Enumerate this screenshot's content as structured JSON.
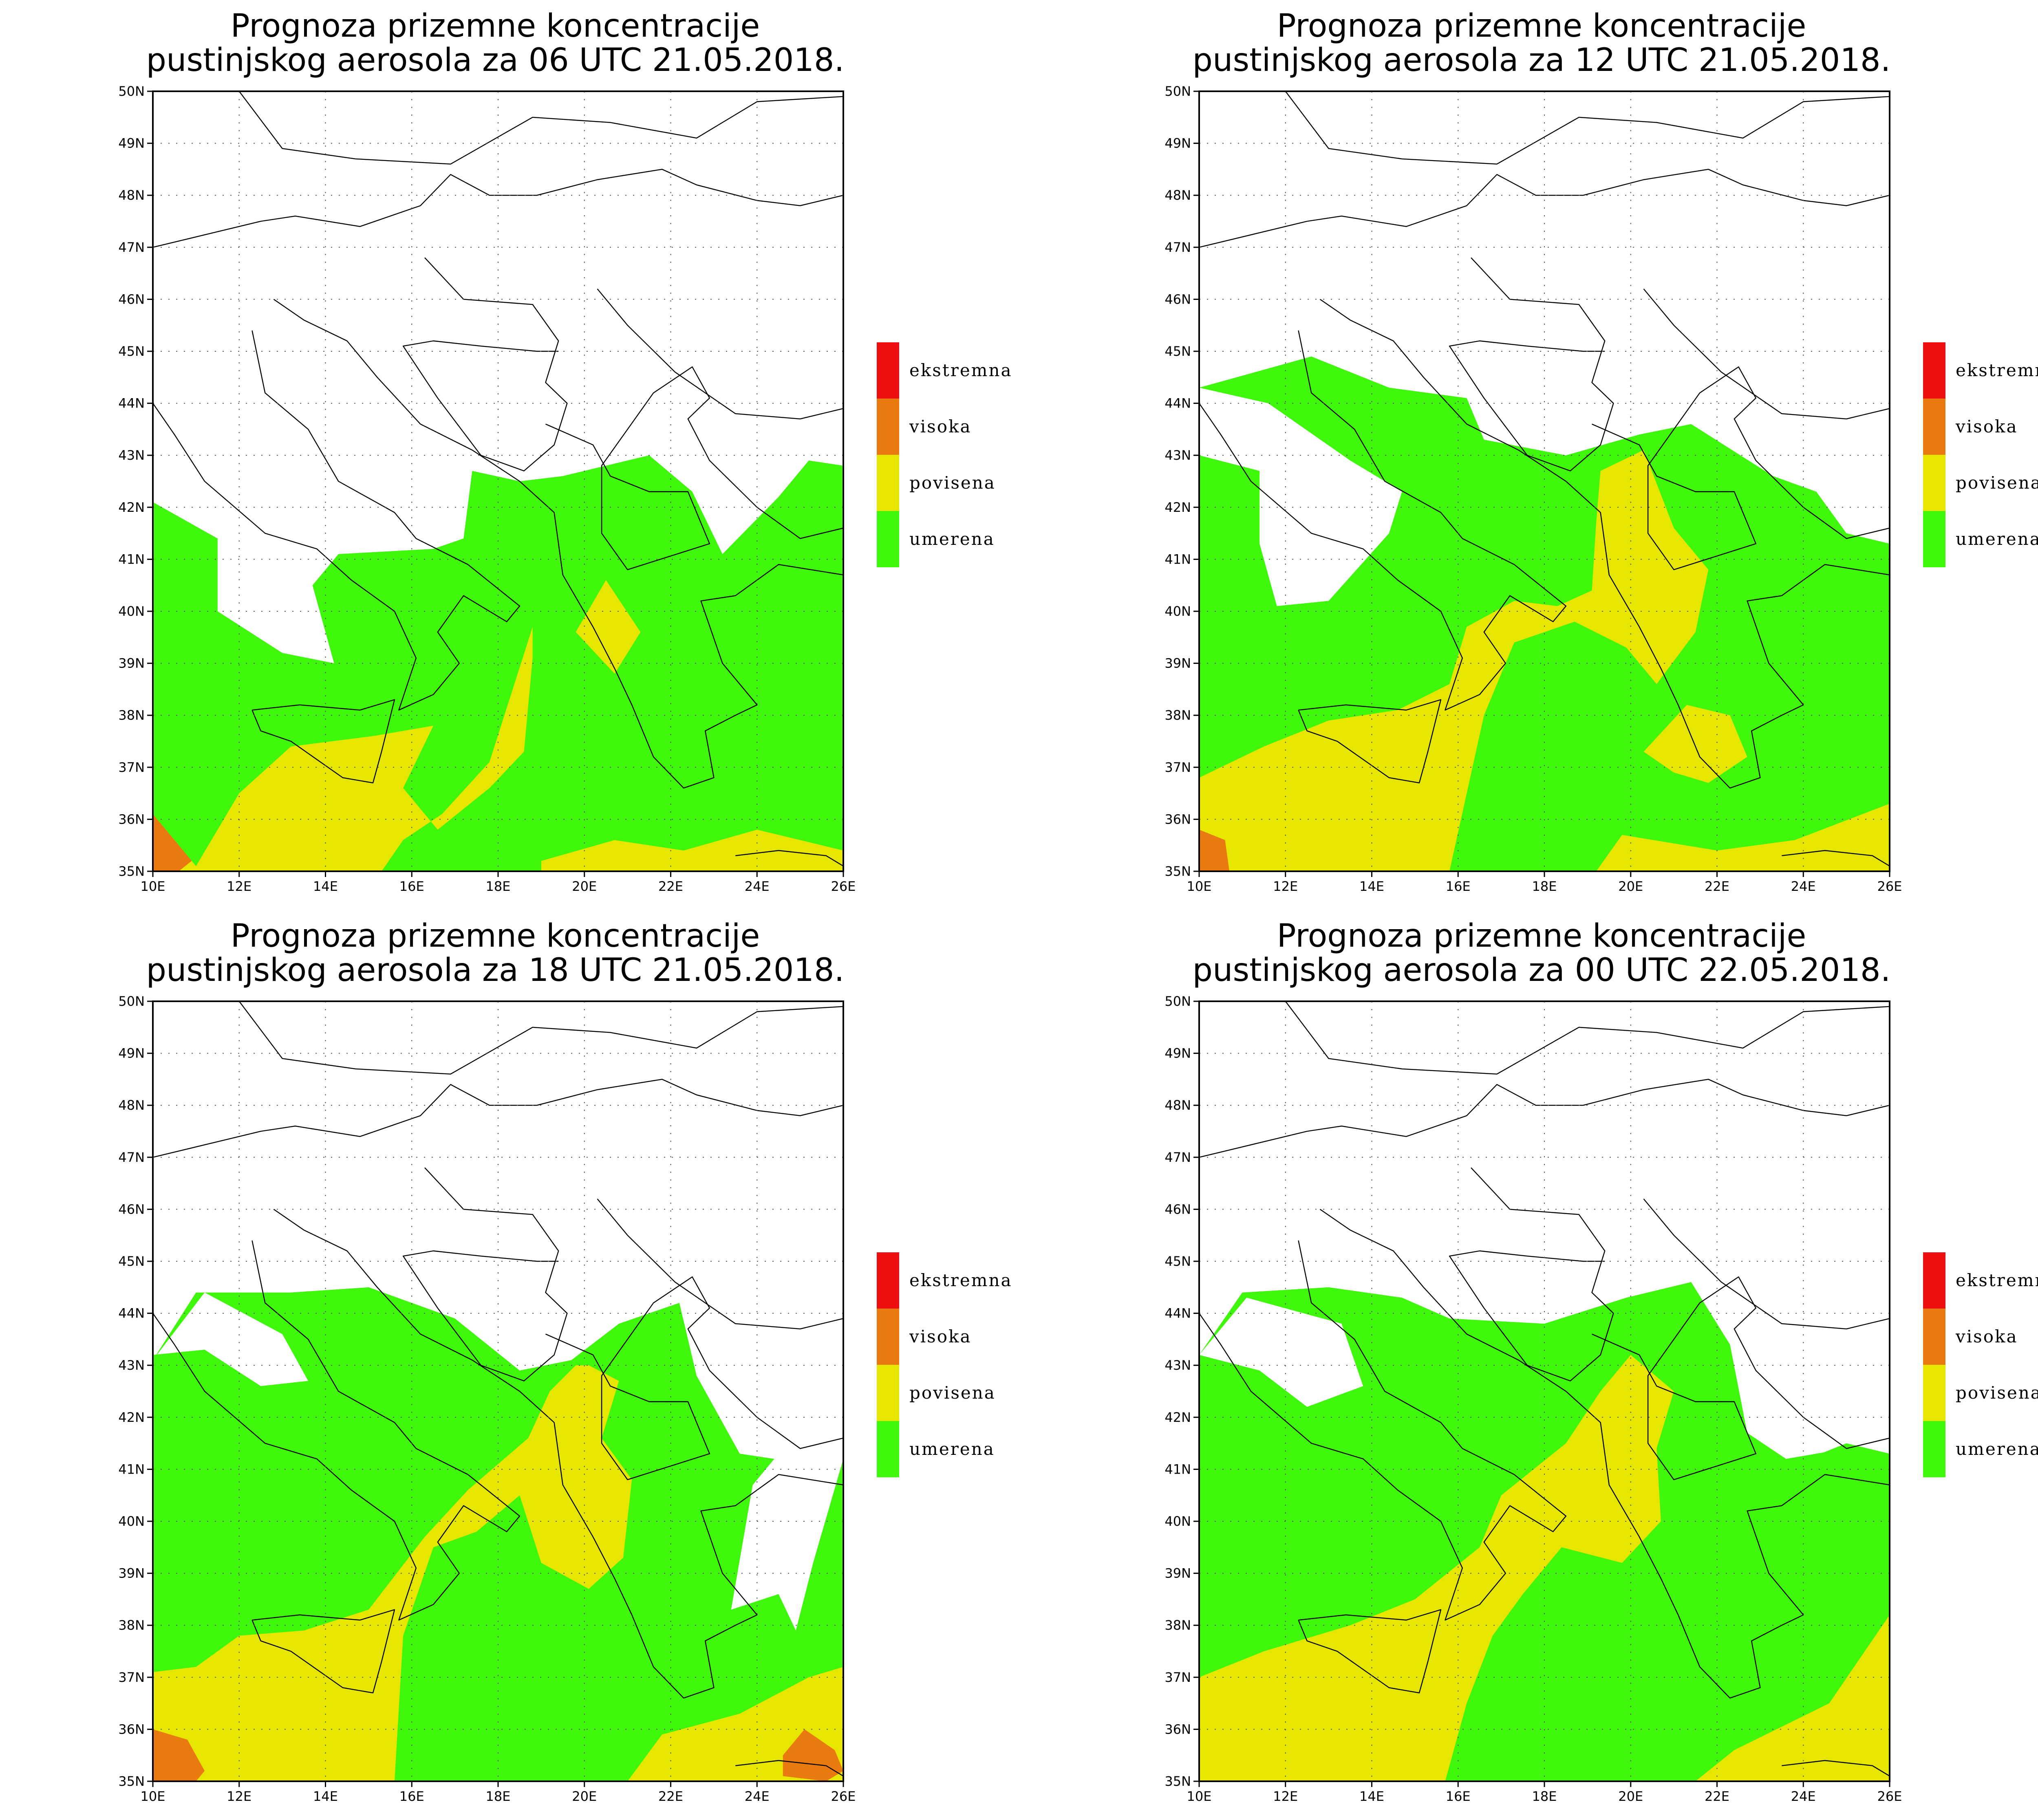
{
  "panels": [
    {
      "title_line1": "Prognoza prizemne koncentracije",
      "title_line2": "pustinjskog aerosola za 06 UTC 21.05.2018.",
      "valid_time": "06 UTC 21.05.2018"
    },
    {
      "title_line1": "Prognoza prizemne koncentracije",
      "title_line2": "pustinjskog aerosola za 12 UTC 21.05.2018.",
      "valid_time": "12 UTC 21.05.2018"
    },
    {
      "title_line1": "Prognoza prizemne koncentracije",
      "title_line2": "pustinjskog aerosola za 18 UTC 21.05.2018.",
      "valid_time": "18 UTC 21.05.2018"
    },
    {
      "title_line1": "Prognoza prizemne koncentracije",
      "title_line2": "pustinjskog aerosola za 00 UTC 22.05.2018.",
      "valid_time": "00 UTC 22.05.2018"
    }
  ],
  "legend": [
    {
      "label": "ekstremna",
      "color": "#ee1010"
    },
    {
      "label": "visoka",
      "color": "#e87a10"
    },
    {
      "label": "povisena",
      "color": "#e6e600"
    },
    {
      "label": "umerena",
      "color": "#3ef70a"
    }
  ],
  "axes": {
    "lon_ticks": [
      "10E",
      "12E",
      "14E",
      "16E",
      "18E",
      "20E",
      "22E",
      "24E",
      "26E"
    ],
    "lat_ticks": [
      "35N",
      "36N",
      "37N",
      "38N",
      "39N",
      "40N",
      "41N",
      "42N",
      "43N",
      "44N",
      "45N",
      "46N",
      "47N",
      "48N",
      "49N",
      "50N"
    ],
    "lon_range": [
      10,
      26
    ],
    "lat_range": [
      35,
      50
    ],
    "grid": true
  }
}
